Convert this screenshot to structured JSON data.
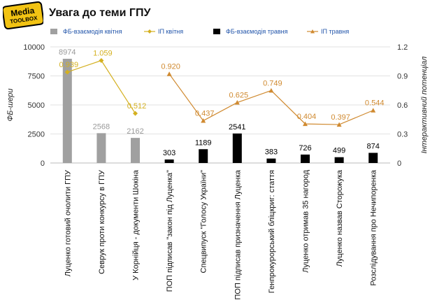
{
  "logo": {
    "line1": "Media",
    "line2": "TOOLBOX"
  },
  "chart_data": {
    "type": "bar+line",
    "title": "Увага до теми ГПУ",
    "ylabel": "ФБ-шери",
    "y2label": "Інтерактивний потенціал",
    "ylim": [
      0,
      10000
    ],
    "y2lim": [
      0,
      1.2
    ],
    "yticks": [
      "0",
      "2500",
      "5000",
      "7500",
      "10000"
    ],
    "y2ticks": [
      "0",
      "0.3",
      "0.6",
      "0.9",
      "1.2"
    ],
    "categories": [
      "Луценко готовий очолити ГПУ",
      "Севрук проти конкурсу в ГПУ",
      "У Корнійця - документи Шокіна",
      "ПОП підписав \"закон під Луценка\"",
      "Спецвипуск \"Голосу України\"",
      "ПОП підписав призначення Луценка",
      "Генпрокурорський бліцкриг: стаття",
      "Луценко отримав 35 нагород",
      "Луценко назвав Сторожука",
      "Розслідування про Нечипоренка"
    ],
    "series": [
      {
        "name": "ФБ-взаємодія квітня",
        "type": "bar",
        "axis": "left",
        "color": "#a0a0a0",
        "values": [
          8974,
          2568,
          2162,
          null,
          null,
          null,
          null,
          null,
          null,
          null
        ],
        "labels": [
          "8974",
          "2568",
          "2162",
          "",
          "",
          "",
          "",
          "",
          "",
          ""
        ]
      },
      {
        "name": "ІП квітня",
        "type": "line",
        "axis": "right",
        "color": "#d4b020",
        "values": [
          0.939,
          1.059,
          0.512,
          null,
          null,
          null,
          null,
          null,
          null,
          null
        ],
        "labels": [
          "0.939",
          "1.059",
          "0.512",
          "",
          "",
          "",
          "",
          "",
          "",
          ""
        ]
      },
      {
        "name": "ФБ-взаємодія травня",
        "type": "bar",
        "axis": "left",
        "color": "#000000",
        "values": [
          null,
          null,
          null,
          303,
          1189,
          2541,
          383,
          726,
          499,
          874
        ],
        "labels": [
          "",
          "",
          "",
          "303",
          "1189",
          "2541",
          "383",
          "726",
          "499",
          "874"
        ]
      },
      {
        "name": "ІП травня",
        "type": "line",
        "axis": "right",
        "color": "#d08a30",
        "values": [
          null,
          null,
          null,
          0.92,
          0.437,
          0.625,
          0.749,
          0.404,
          0.397,
          0.544
        ],
        "labels": [
          "",
          "",
          "",
          "0.920",
          "0.437",
          "0.625",
          "0.749",
          "0.404",
          "0.397",
          "0.544"
        ]
      }
    ]
  }
}
